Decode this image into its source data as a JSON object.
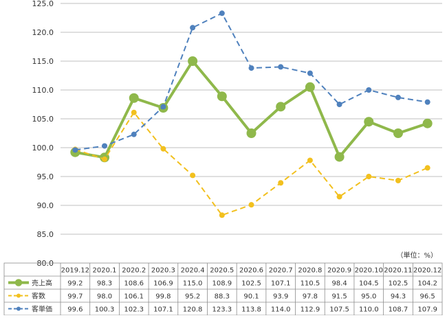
{
  "chart_data": {
    "type": "line",
    "unit_label": "（単位：%）",
    "categories": [
      "2019.12",
      "2020.1",
      "2020.2",
      "2020.3",
      "2020.4",
      "2020.5",
      "2020.6",
      "2020.7",
      "2020.8",
      "2020.9",
      "2020.10",
      "2020.11",
      "2020.12"
    ],
    "ylim": [
      80,
      125
    ],
    "y_ticks": [
      "80.0",
      "85.0",
      "90.0",
      "95.0",
      "100.0",
      "105.0",
      "110.0",
      "115.0",
      "120.0",
      "125.0"
    ],
    "grid": true,
    "legend_placement": "data-table-left",
    "series": [
      {
        "name": "売上高",
        "color": "#8fb84b",
        "line_style": "solid",
        "values": [
          99.2,
          98.3,
          108.6,
          106.9,
          115.0,
          108.9,
          102.5,
          107.1,
          110.5,
          98.4,
          104.5,
          102.5,
          104.2
        ],
        "labels": [
          "99.2",
          "98.3",
          "108.6",
          "106.9",
          "115.0",
          "108.9",
          "102.5",
          "107.1",
          "110.5",
          "98.4",
          "104.5",
          "102.5",
          "104.2"
        ]
      },
      {
        "name": "客数",
        "color": "#f2c01e",
        "line_style": "dashed",
        "values": [
          99.7,
          98.0,
          106.1,
          99.8,
          95.2,
          88.3,
          90.1,
          93.9,
          97.8,
          91.5,
          95.0,
          94.3,
          96.5
        ],
        "labels": [
          "99.7",
          "98.0",
          "106.1",
          "99.8",
          "95.2",
          "88.3",
          "90.1",
          "93.9",
          "97.8",
          "91.5",
          "95.0",
          "94.3",
          "96.5"
        ]
      },
      {
        "name": "客単価",
        "color": "#4f81bd",
        "line_style": "dashed",
        "values": [
          99.6,
          100.3,
          102.3,
          107.1,
          120.8,
          123.3,
          113.8,
          114.0,
          112.9,
          107.5,
          110.0,
          108.7,
          107.9
        ],
        "labels": [
          "99.6",
          "100.3",
          "102.3",
          "107.1",
          "120.8",
          "123.3",
          "113.8",
          "114.0",
          "112.9",
          "107.5",
          "110.0",
          "108.7",
          "107.9"
        ]
      }
    ]
  }
}
